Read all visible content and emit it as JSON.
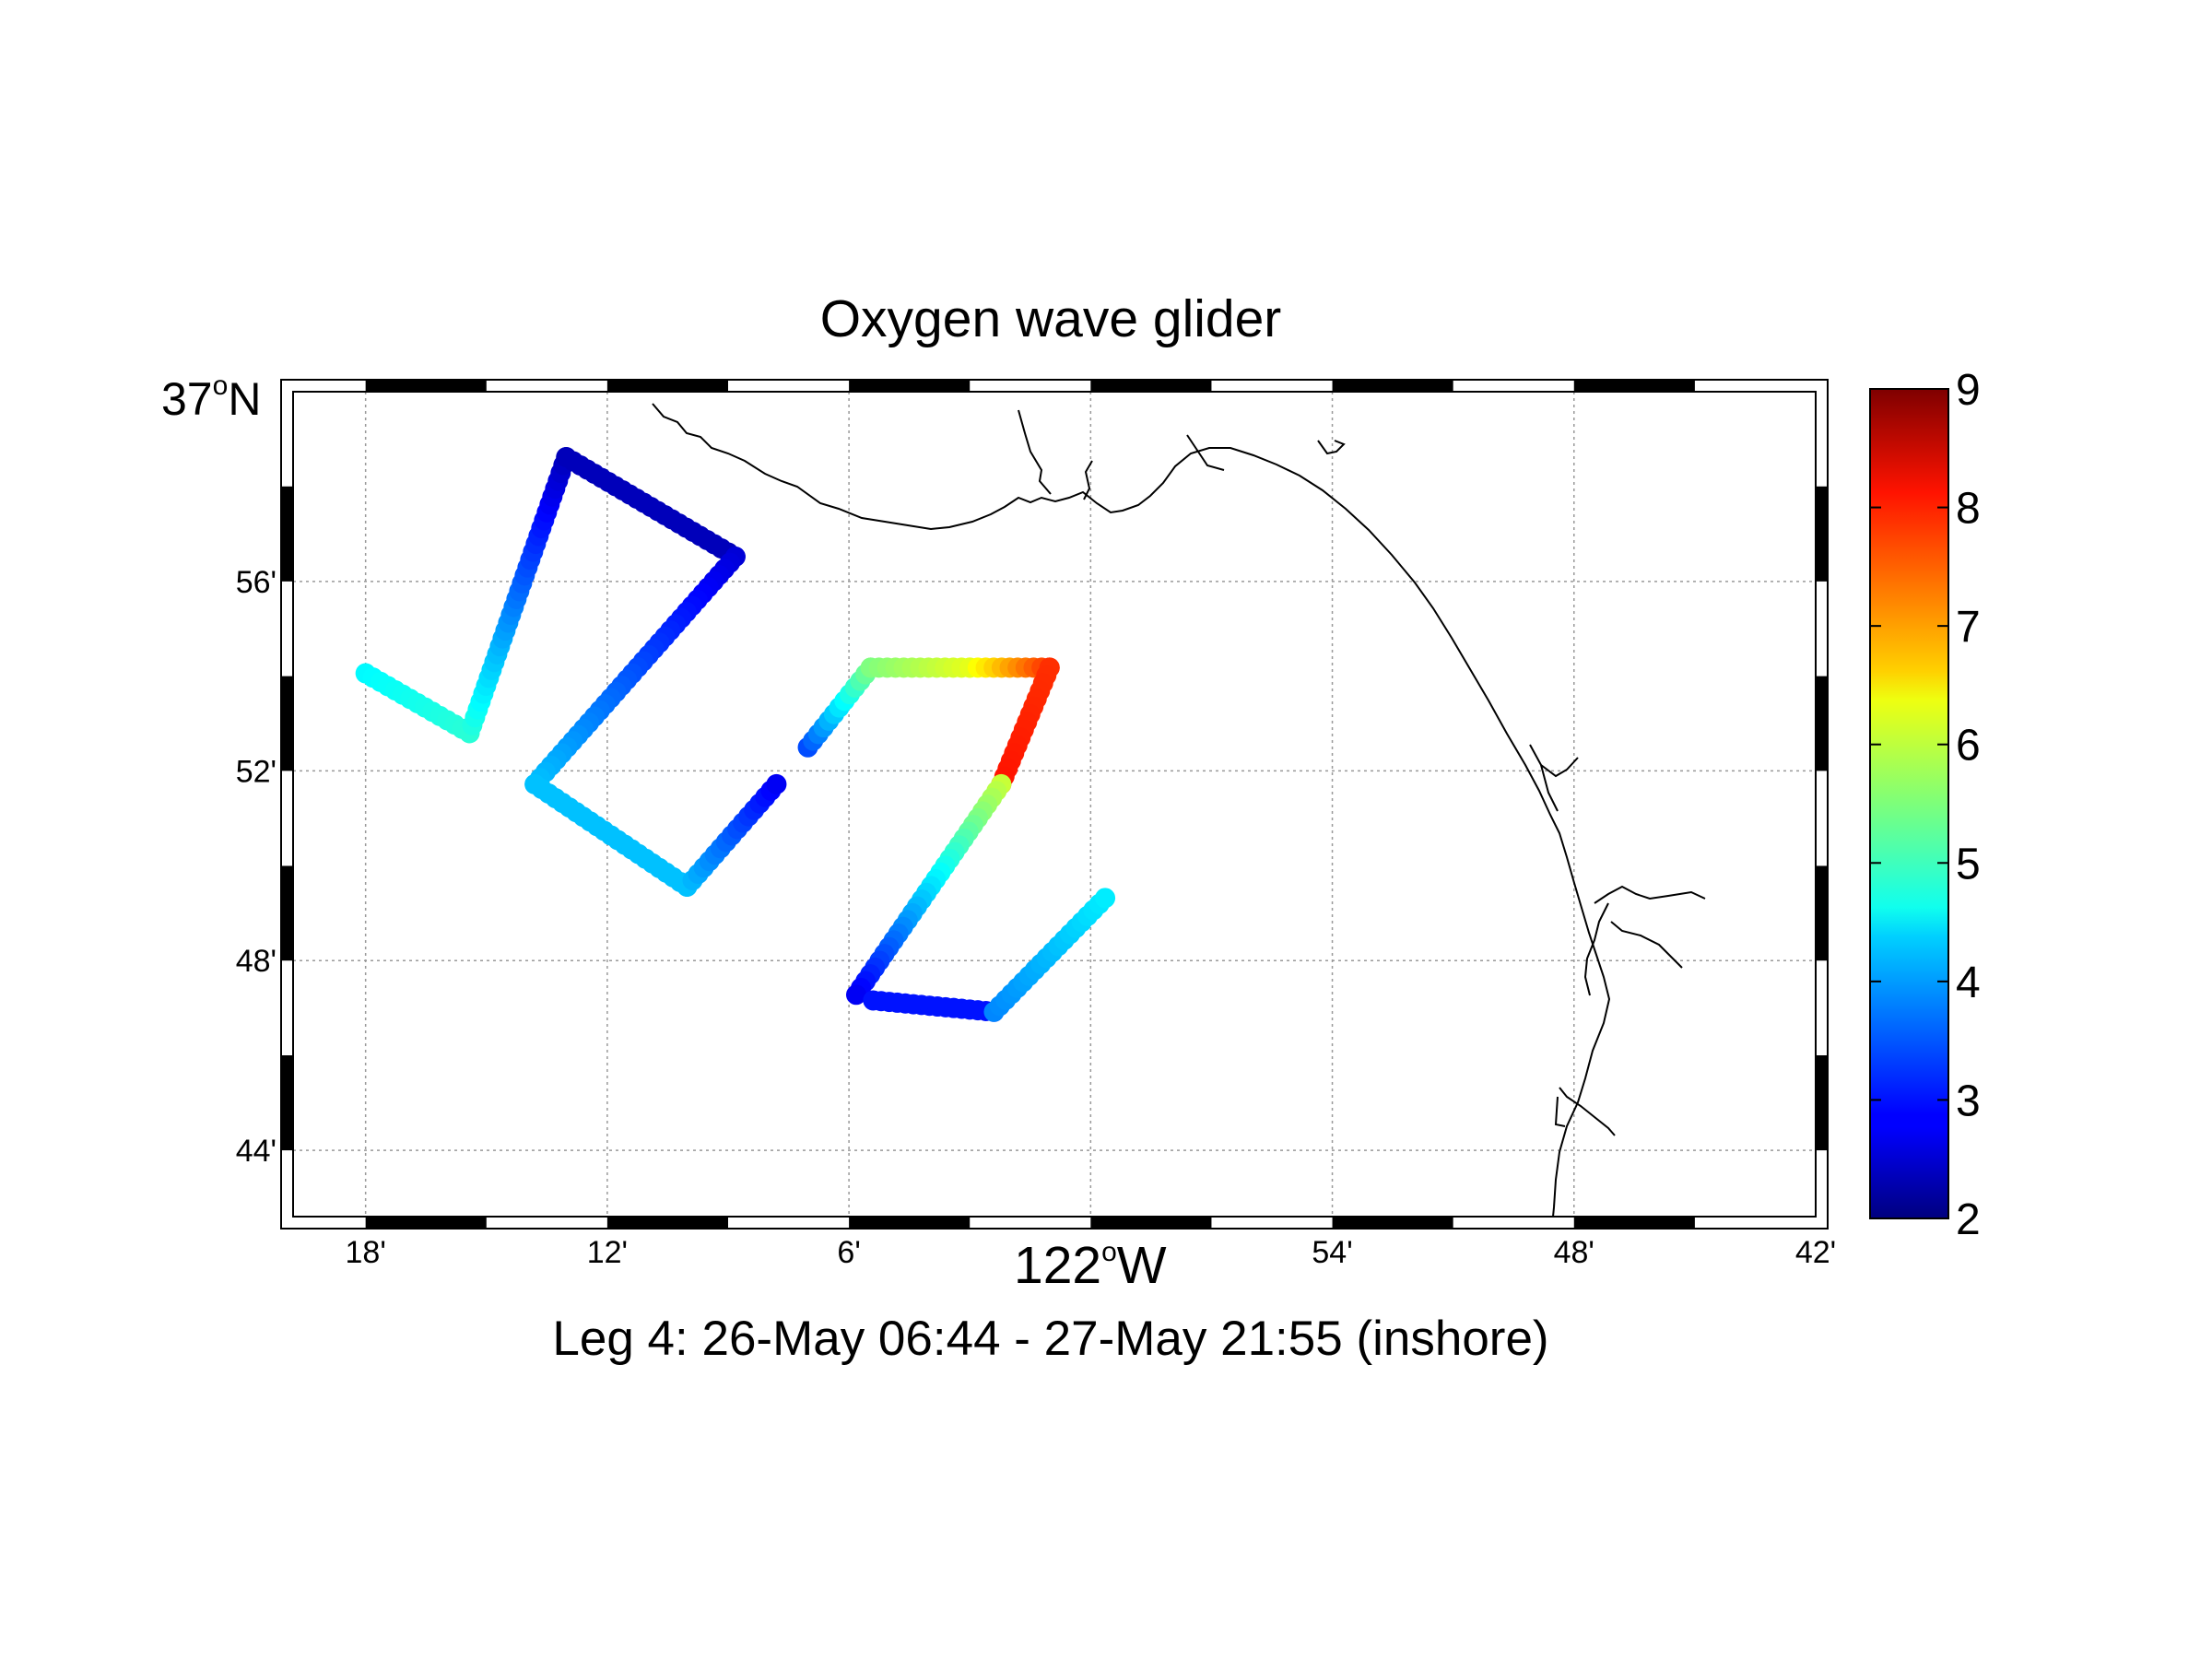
{
  "title": "Oxygen wave glider",
  "xlabel": {
    "main": "122",
    "sup": "o",
    "suffix": "W"
  },
  "ylabel_top": {
    "main": "37",
    "sup": "o",
    "suffix": "N"
  },
  "caption": "Leg 4: 26-May 06:44 - 27-May 21:55 (inshore)",
  "x_ticks": [
    {
      "value": -122.3,
      "label": "18'"
    },
    {
      "value": -122.2,
      "label": "12'"
    },
    {
      "value": -122.1,
      "label": "6'"
    },
    {
      "value": -121.9,
      "label": "54'"
    },
    {
      "value": -121.8,
      "label": "48'"
    },
    {
      "value": -121.7,
      "label": "42'"
    }
  ],
  "y_ticks": [
    {
      "value": 36.9333,
      "label": "56'"
    },
    {
      "value": 36.8667,
      "label": "52'"
    },
    {
      "value": 36.8,
      "label": "48'"
    },
    {
      "value": 36.7333,
      "label": "44'"
    }
  ],
  "colorbar": {
    "min": 2,
    "max": 9,
    "ticks": [
      "2",
      "3",
      "4",
      "5",
      "6",
      "7",
      "8",
      "9"
    ]
  },
  "chart_data": {
    "type": "scatter",
    "title": "Oxygen wave glider",
    "xlabel": "122°W",
    "ylabel": "37°N",
    "xlim": [
      -122.33,
      -121.7
    ],
    "ylim": [
      36.71,
      37.0
    ],
    "colormap": "jet",
    "clim": [
      2,
      9
    ],
    "grid": true,
    "segments": [
      {
        "from": [
          -122.3,
          36.901
        ],
        "to": [
          -122.257,
          36.88
        ],
        "v_from": 4.6,
        "v_to": 4.9
      },
      {
        "from": [
          -122.257,
          36.88
        ],
        "to": [
          -122.217,
          36.977
        ],
        "v_from": 4.9,
        "v_to": 2.4
      },
      {
        "from": [
          -122.217,
          36.977
        ],
        "to": [
          -122.147,
          36.942
        ],
        "v_from": 2.4,
        "v_to": 2.4
      },
      {
        "from": [
          -122.147,
          36.942
        ],
        "to": [
          -122.23,
          36.862
        ],
        "v_from": 2.6,
        "v_to": 4.2
      },
      {
        "from": [
          -122.23,
          36.862
        ],
        "to": [
          -122.167,
          36.826
        ],
        "v_from": 4.2,
        "v_to": 4.2
      },
      {
        "from": [
          -122.167,
          36.826
        ],
        "to": [
          -122.13,
          36.862
        ],
        "v_from": 4.2,
        "v_to": 2.8
      },
      {
        "from": [
          -122.117,
          36.875
        ],
        "to": [
          -122.091,
          36.903
        ],
        "v_from": 3.4,
        "v_to": 5.5
      },
      {
        "from": [
          -122.091,
          36.903
        ],
        "to": [
          -122.05,
          36.903
        ],
        "v_from": 5.5,
        "v_to": 6.2
      },
      {
        "from": [
          -122.05,
          36.903
        ],
        "to": [
          -122.017,
          36.903
        ],
        "v_from": 6.2,
        "v_to": 7.8
      },
      {
        "from": [
          -122.017,
          36.903
        ],
        "to": [
          -122.037,
          36.862
        ],
        "v_from": 7.8,
        "v_to": 8.0
      },
      {
        "from": [
          -122.037,
          36.862
        ],
        "to": [
          -122.097,
          36.788
        ],
        "v_from": 6.0,
        "v_to": 2.8
      },
      {
        "from": [
          -122.09,
          36.786
        ],
        "to": [
          -122.04,
          36.782
        ],
        "v_from": 3.0,
        "v_to": 3.0
      },
      {
        "from": [
          -122.04,
          36.782
        ],
        "to": [
          -121.994,
          36.822
        ],
        "v_from": 3.8,
        "v_to": 4.5
      }
    ],
    "coastline_visible": true
  }
}
